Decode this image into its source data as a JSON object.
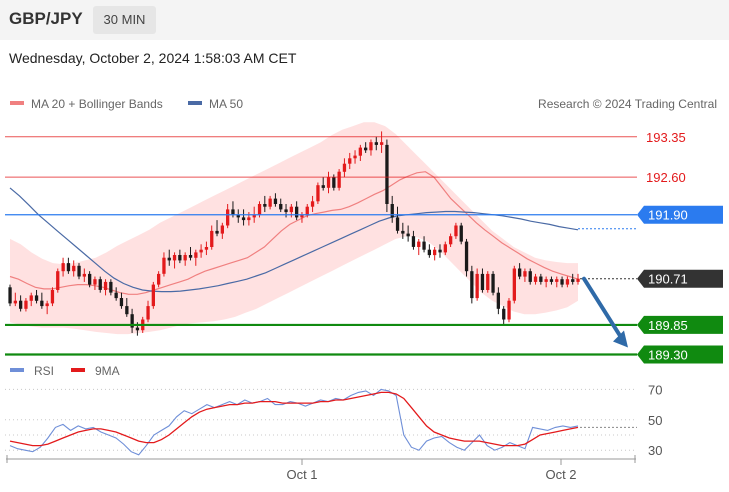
{
  "header": {
    "pair": "GBP/JPY",
    "timeframe": "30 MIN"
  },
  "datetime": "Wednesday, October 2, 2024 1:58:03 AM CET",
  "legend": {
    "ma20": "MA 20 + Bollinger Bands",
    "ma50": "MA 50",
    "copyright": "Research © 2024 Trading Central",
    "rsi": "RSI",
    "rsi_ma": "9MA"
  },
  "colors": {
    "bullish": "#e31a1c",
    "bearish": "#1a1a1a",
    "ma20": "#f08080",
    "bollinger_fill": "#ffdede",
    "ma50": "#4a6aa5",
    "level_red": "#e31a1c",
    "level_blue": "#2b7bef",
    "level_green": "#108a10",
    "current_price": "#333333",
    "arrow": "#2f6aa8",
    "rsi_line": "#6f8fd8",
    "rsi_ma_line": "#e31a1c"
  },
  "chart_data": [
    {
      "type": "candlestick",
      "title": "GBP/JPY 30 MIN",
      "x_ticks": [
        "Oct 1",
        "Oct 2"
      ],
      "ylim": [
        189.0,
        193.7
      ],
      "grid": false,
      "legend_position": "top-left",
      "levels": [
        {
          "value": 193.35,
          "label": "193.35",
          "style": "red-line"
        },
        {
          "value": 192.6,
          "label": "192.60",
          "style": "red-line"
        },
        {
          "value": 191.9,
          "label": "191.90",
          "style": "blue-tag"
        },
        {
          "value": 190.71,
          "label": "190.71",
          "style": "current-price"
        },
        {
          "value": 189.85,
          "label": "189.85",
          "style": "green-tag"
        },
        {
          "value": 189.3,
          "label": "189.30",
          "style": "green-tag"
        }
      ],
      "forecast_arrow": {
        "from": 190.71,
        "to": 189.3,
        "direction": "down"
      },
      "candles": [
        [
          190.55,
          190.6,
          190.2,
          190.25
        ],
        [
          190.25,
          190.45,
          190.2,
          190.3
        ],
        [
          190.3,
          190.4,
          190.1,
          190.15
        ],
        [
          190.15,
          190.35,
          190.1,
          190.3
        ],
        [
          190.3,
          190.45,
          190.2,
          190.4
        ],
        [
          190.4,
          190.5,
          190.25,
          190.3
        ],
        [
          190.3,
          190.45,
          190.15,
          190.2
        ],
        [
          190.2,
          190.3,
          190.05,
          190.25
        ],
        [
          190.25,
          190.55,
          190.2,
          190.5
        ],
        [
          190.5,
          190.9,
          190.45,
          190.85
        ],
        [
          190.85,
          191.1,
          190.75,
          191.0
        ],
        [
          191.0,
          191.1,
          190.8,
          190.85
        ],
        [
          190.85,
          191.05,
          190.75,
          190.95
        ],
        [
          190.95,
          191.0,
          190.7,
          190.75
        ],
        [
          190.75,
          190.9,
          190.65,
          190.8
        ],
        [
          190.8,
          190.85,
          190.55,
          190.6
        ],
        [
          190.6,
          190.75,
          190.5,
          190.7
        ],
        [
          190.7,
          190.75,
          190.45,
          190.5
        ],
        [
          190.5,
          190.7,
          190.4,
          190.65
        ],
        [
          190.65,
          190.7,
          190.4,
          190.45
        ],
        [
          190.45,
          190.55,
          190.3,
          190.35
        ],
        [
          190.35,
          190.45,
          190.15,
          190.2
        ],
        [
          190.2,
          190.35,
          190.0,
          190.05
        ],
        [
          190.05,
          190.15,
          189.7,
          189.8
        ],
        [
          189.8,
          189.9,
          189.65,
          189.75
        ],
        [
          189.75,
          190.0,
          189.7,
          189.95
        ],
        [
          189.95,
          190.3,
          189.9,
          190.2
        ],
        [
          190.2,
          190.65,
          190.15,
          190.6
        ],
        [
          190.6,
          190.85,
          190.55,
          190.8
        ],
        [
          190.8,
          191.2,
          190.75,
          191.1
        ],
        [
          191.1,
          191.25,
          190.95,
          191.05
        ],
        [
          191.05,
          191.2,
          190.9,
          191.15
        ],
        [
          191.15,
          191.25,
          191.0,
          191.05
        ],
        [
          191.05,
          191.2,
          190.95,
          191.15
        ],
        [
          191.15,
          191.3,
          191.05,
          191.1
        ],
        [
          191.1,
          191.25,
          190.95,
          191.2
        ],
        [
          191.2,
          191.35,
          191.1,
          191.25
        ],
        [
          191.25,
          191.4,
          191.15,
          191.3
        ],
        [
          191.3,
          191.7,
          191.25,
          191.6
        ],
        [
          191.6,
          191.8,
          191.5,
          191.55
        ],
        [
          191.55,
          191.75,
          191.45,
          191.7
        ],
        [
          191.7,
          192.1,
          191.65,
          192.0
        ],
        [
          192.0,
          192.15,
          191.85,
          191.9
        ],
        [
          191.9,
          192.0,
          191.75,
          191.85
        ],
        [
          191.85,
          192.0,
          191.7,
          191.8
        ],
        [
          191.8,
          191.95,
          191.7,
          191.85
        ],
        [
          191.85,
          192.05,
          191.75,
          191.9
        ],
        [
          191.9,
          192.15,
          191.85,
          192.1
        ],
        [
          192.1,
          192.25,
          191.95,
          192.05
        ],
        [
          192.05,
          192.25,
          192.0,
          192.2
        ],
        [
          192.2,
          192.3,
          192.05,
          192.1
        ],
        [
          192.1,
          192.2,
          191.95,
          192.0
        ],
        [
          192.0,
          192.1,
          191.85,
          191.95
        ],
        [
          191.95,
          192.1,
          191.85,
          192.05
        ],
        [
          192.05,
          192.15,
          191.8,
          191.85
        ],
        [
          191.85,
          191.95,
          191.75,
          191.9
        ],
        [
          191.9,
          192.1,
          191.85,
          192.05
        ],
        [
          192.05,
          192.25,
          191.95,
          192.15
        ],
        [
          192.15,
          192.5,
          192.1,
          192.45
        ],
        [
          192.45,
          192.6,
          192.35,
          192.4
        ],
        [
          192.4,
          192.7,
          192.3,
          192.6
        ],
        [
          192.6,
          192.65,
          192.35,
          192.4
        ],
        [
          192.4,
          192.75,
          192.35,
          192.7
        ],
        [
          192.7,
          192.95,
          192.6,
          192.85
        ],
        [
          192.85,
          193.05,
          192.75,
          192.95
        ],
        [
          192.95,
          193.1,
          192.85,
          193.0
        ],
        [
          193.0,
          193.2,
          192.9,
          193.15
        ],
        [
          193.15,
          193.25,
          193.05,
          193.1
        ],
        [
          193.1,
          193.3,
          193.0,
          193.25
        ],
        [
          193.25,
          193.35,
          193.1,
          193.2
        ],
        [
          193.2,
          193.45,
          193.05,
          193.25
        ],
        [
          193.2,
          193.3,
          191.95,
          192.1
        ],
        [
          192.1,
          192.25,
          191.75,
          191.85
        ],
        [
          191.85,
          192.05,
          191.55,
          191.6
        ],
        [
          191.6,
          191.75,
          191.45,
          191.55
        ],
        [
          191.55,
          191.7,
          191.4,
          191.5
        ],
        [
          191.5,
          191.6,
          191.25,
          191.3
        ],
        [
          191.3,
          191.45,
          191.15,
          191.4
        ],
        [
          191.4,
          191.5,
          191.2,
          191.25
        ],
        [
          191.25,
          191.35,
          191.1,
          191.15
        ],
        [
          191.15,
          191.3,
          191.05,
          191.25
        ],
        [
          191.25,
          191.35,
          191.1,
          191.2
        ],
        [
          191.2,
          191.4,
          191.15,
          191.35
        ],
        [
          191.35,
          191.55,
          191.3,
          191.5
        ],
        [
          191.5,
          191.75,
          191.45,
          191.7
        ],
        [
          191.7,
          191.75,
          191.35,
          191.4
        ],
        [
          191.4,
          191.45,
          190.75,
          190.85
        ],
        [
          190.85,
          190.95,
          190.25,
          190.35
        ],
        [
          190.35,
          190.9,
          190.3,
          190.8
        ],
        [
          190.8,
          190.9,
          190.45,
          190.5
        ],
        [
          190.5,
          190.85,
          190.45,
          190.8
        ],
        [
          190.8,
          190.85,
          190.4,
          190.45
        ],
        [
          190.45,
          190.55,
          190.05,
          190.15
        ],
        [
          190.15,
          190.2,
          189.85,
          189.95
        ],
        [
          189.95,
          190.35,
          189.9,
          190.3
        ],
        [
          190.3,
          190.95,
          190.25,
          190.9
        ],
        [
          190.9,
          191.0,
          190.7,
          190.75
        ],
        [
          190.75,
          190.9,
          190.65,
          190.85
        ],
        [
          190.85,
          190.9,
          190.6,
          190.65
        ],
        [
          190.65,
          190.8,
          190.6,
          190.75
        ],
        [
          190.75,
          190.8,
          190.6,
          190.65
        ],
        [
          190.65,
          190.75,
          190.55,
          190.7
        ],
        [
          190.7,
          190.75,
          190.6,
          190.65
        ],
        [
          190.65,
          190.75,
          190.55,
          190.7
        ],
        [
          190.7,
          190.75,
          190.55,
          190.6
        ],
        [
          190.6,
          190.75,
          190.55,
          190.7
        ],
        [
          190.7,
          190.8,
          190.6,
          190.65
        ],
        [
          190.65,
          190.8,
          190.6,
          190.71
        ]
      ],
      "ma20": [
        190.75,
        190.7,
        190.62,
        190.55,
        190.52,
        190.52,
        190.55,
        190.58,
        190.6,
        190.6,
        190.58,
        190.55,
        190.5,
        190.45,
        190.42,
        190.42,
        190.45,
        190.5,
        190.55,
        190.6,
        190.65,
        190.7,
        190.78,
        190.85,
        190.9,
        190.95,
        191.0,
        191.05,
        191.1,
        191.2,
        191.3,
        191.45,
        191.6,
        191.72,
        191.8,
        191.88,
        191.92,
        191.95,
        191.98,
        192.0,
        192.05,
        192.12,
        192.2,
        192.28,
        192.35,
        192.45,
        192.55,
        192.62,
        192.68,
        192.7,
        192.6,
        192.4,
        192.2,
        192.05,
        191.9,
        191.75,
        191.62,
        191.5,
        191.38,
        191.28,
        191.18,
        191.08,
        191.0,
        190.92,
        190.85,
        190.8,
        190.75,
        190.7
      ],
      "ma50": [
        192.4,
        192.25,
        192.08,
        191.9,
        191.75,
        191.6,
        191.45,
        191.3,
        191.15,
        191.0,
        190.85,
        190.72,
        190.62,
        190.55,
        190.5,
        190.48,
        190.47,
        190.47,
        190.48,
        190.5,
        190.52,
        190.55,
        190.58,
        190.62,
        190.66,
        190.7,
        190.76,
        190.82,
        190.9,
        190.98,
        191.06,
        191.14,
        191.22,
        191.3,
        191.38,
        191.46,
        191.54,
        191.62,
        191.7,
        191.78,
        191.84,
        191.88,
        191.9,
        191.92,
        191.94,
        191.95,
        191.96,
        191.96,
        191.95,
        191.94,
        191.92,
        191.9,
        191.88,
        191.85,
        191.82,
        191.78,
        191.75,
        191.72,
        191.68,
        191.65,
        191.62
      ],
      "bollinger_upper": [
        191.45,
        191.35,
        191.2,
        191.08,
        191.0,
        190.98,
        191.0,
        191.05,
        191.1,
        191.2,
        191.32,
        191.42,
        191.52,
        191.62,
        191.75,
        191.85,
        191.95,
        192.05,
        192.15,
        192.25,
        192.35,
        192.45,
        192.55,
        192.65,
        192.75,
        192.85,
        192.95,
        193.05,
        193.15,
        193.25,
        193.38,
        193.48,
        193.55,
        193.62,
        193.62,
        193.55,
        193.4,
        193.2,
        193.0,
        192.8,
        192.6,
        192.4,
        192.2,
        192.0,
        191.8,
        191.6,
        191.45,
        191.3,
        191.2,
        191.1,
        191.05,
        191.02,
        191.0,
        191.0
      ],
      "bollinger_lower": [
        189.9,
        189.85,
        189.82,
        189.8,
        189.8,
        189.8,
        189.78,
        189.75,
        189.72,
        189.7,
        189.68,
        189.68,
        189.7,
        189.72,
        189.75,
        189.8,
        189.85,
        189.88,
        189.9,
        189.92,
        189.95,
        190.0,
        190.08,
        190.15,
        190.25,
        190.35,
        190.45,
        190.55,
        190.65,
        190.75,
        190.85,
        190.95,
        191.05,
        191.15,
        191.25,
        191.35,
        191.45,
        191.5,
        191.48,
        191.4,
        191.25,
        191.05,
        190.85,
        190.65,
        190.45,
        190.3,
        190.2,
        190.1,
        190.05,
        190.05,
        190.08,
        190.12,
        190.18,
        190.3
      ]
    },
    {
      "type": "line",
      "title": "RSI",
      "x_ticks": [
        "Oct 1",
        "Oct 2"
      ],
      "ylim": [
        20,
        80
      ],
      "y_ticks": [
        70,
        50,
        30
      ],
      "grid": true,
      "legend_position": "top-left",
      "series": [
        {
          "name": "RSI",
          "values": [
            33,
            31,
            30,
            29,
            32,
            38,
            45,
            47,
            43,
            46,
            44,
            45,
            42,
            40,
            38,
            34,
            29,
            27,
            33,
            40,
            43,
            46,
            52,
            56,
            54,
            57,
            60,
            58,
            60,
            62,
            60,
            63,
            61,
            62,
            64,
            60,
            60,
            62,
            61,
            59,
            61,
            63,
            62,
            64,
            63,
            66,
            68,
            69,
            66,
            70,
            69,
            66,
            40,
            32,
            30,
            36,
            38,
            39,
            35,
            32,
            30,
            35,
            40,
            33,
            30,
            32,
            35,
            33,
            31,
            45,
            44,
            43,
            45,
            46,
            45,
            46
          ]
        },
        {
          "name": "9MA",
          "values": [
            36,
            35,
            34,
            33,
            33,
            34,
            36,
            38,
            40,
            42,
            43,
            44,
            44,
            43,
            42,
            40,
            38,
            36,
            35,
            35,
            37,
            40,
            44,
            48,
            52,
            55,
            57,
            58,
            59,
            60,
            60,
            61,
            61,
            62,
            62,
            62,
            61,
            61,
            61,
            61,
            61,
            62,
            62,
            63,
            63,
            64,
            65,
            66,
            67,
            68,
            68,
            67,
            64,
            58,
            52,
            46,
            42,
            40,
            38,
            37,
            36,
            36,
            36,
            35,
            34,
            33,
            33,
            33,
            34,
            37,
            40,
            41,
            42,
            43,
            44,
            45
          ]
        }
      ]
    }
  ]
}
